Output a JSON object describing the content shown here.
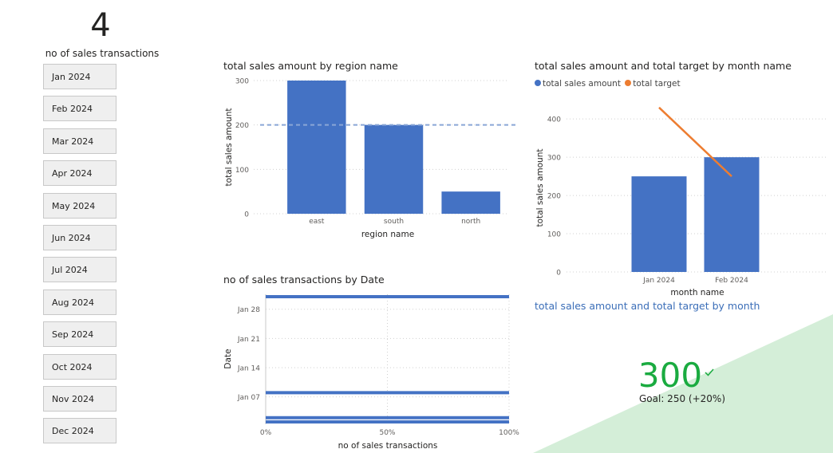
{
  "card": {
    "value": "4",
    "label": "no of sales transactions"
  },
  "slicer": {
    "items": [
      "Jan 2024",
      "Feb 2024",
      "Mar 2024",
      "Apr 2024",
      "May 2024",
      "Jun 2024",
      "Jul 2024",
      "Aug 2024",
      "Sep 2024",
      "Oct 2024",
      "Nov 2024",
      "Dec 2024"
    ]
  },
  "colors": {
    "bar": "#4472c4",
    "line": "#ed7d31",
    "kpi_good": "#1aab40",
    "kpi_bg": "#d4eed8",
    "link": "#3b6eb8"
  },
  "kpi": {
    "value": "300",
    "goal_text": "Goal: 250 (+20%)",
    "icon": "checkmark-icon"
  },
  "month_chart_subtitle": "total sales amount and total target by month",
  "chart_data": [
    {
      "type": "bar",
      "title": "total sales amount by region name",
      "xlabel": "region name",
      "ylabel": "total sales amount",
      "categories": [
        "east",
        "south",
        "north"
      ],
      "values": [
        300,
        200,
        50
      ],
      "ylim": [
        0,
        300
      ],
      "yticks": [
        "0",
        "100",
        "200",
        "300"
      ],
      "reference_line": 200,
      "grid": true
    },
    {
      "type": "bar",
      "title": "total sales amount and total target by month name",
      "xlabel": "month name",
      "ylabel": "total sales amount",
      "categories": [
        "Jan 2024",
        "Feb 2024"
      ],
      "series": [
        {
          "name": "total sales amount",
          "type": "bar",
          "values": [
            250,
            300
          ]
        },
        {
          "name": "total target",
          "type": "line",
          "values": [
            430,
            250
          ]
        }
      ],
      "ylim": [
        0,
        440
      ],
      "yticks": [
        "0",
        "100",
        "200",
        "300",
        "400"
      ],
      "legend": "top-left",
      "grid": true
    },
    {
      "type": "bar",
      "orientation": "horizontal",
      "title": "no of sales transactions by Date",
      "xlabel": "no of sales transactions",
      "ylabel": "Date",
      "xticks": [
        "0%",
        "50%",
        "100%"
      ],
      "yticks": [
        "Jan 07",
        "Jan 21",
        "Jan 14",
        "Jan 28"
      ],
      "ytick_order": [
        "Jan 28",
        "Jan 21",
        "Jan 14",
        "Jan 07"
      ],
      "dates": [
        "2024-01-31",
        "2024-01-08",
        "2024-01-02",
        "2024-01-01"
      ],
      "values": [
        100,
        100,
        100,
        100
      ],
      "xlim": [
        0,
        100
      ],
      "grid": true
    }
  ]
}
